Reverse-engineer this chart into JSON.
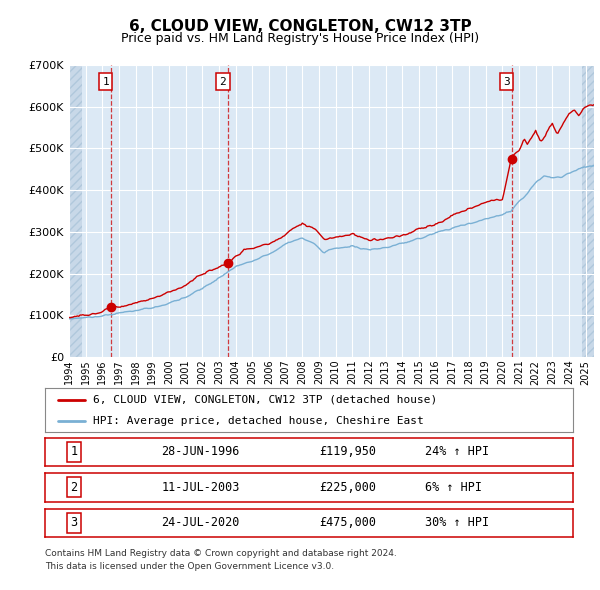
{
  "title": "6, CLOUD VIEW, CONGLETON, CW12 3TP",
  "subtitle": "Price paid vs. HM Land Registry's House Price Index (HPI)",
  "title_fontsize": 11,
  "subtitle_fontsize": 9,
  "background_color": "#ffffff",
  "plot_bg_color": "#dce9f5",
  "hatch_color": "#c8d8e8",
  "grid_color": "#ffffff",
  "hpi_line_color": "#7ab0d4",
  "price_line_color": "#cc0000",
  "marker_color": "#cc0000",
  "sale_years": [
    1996.5,
    2003.54,
    2020.56
  ],
  "sale_prices": [
    119950,
    225000,
    475000
  ],
  "sale_labels": [
    "1",
    "2",
    "3"
  ],
  "sale_label_pcts": [
    "24% ↑ HPI",
    "6% ↑ HPI",
    "30% ↑ HPI"
  ],
  "sale_date_strs": [
    "28-JUN-1996",
    "11-JUL-2003",
    "24-JUL-2020"
  ],
  "sale_price_strs": [
    "£119,950",
    "£225,000",
    "£475,000"
  ],
  "legend_line1": "6, CLOUD VIEW, CONGLETON, CW12 3TP (detached house)",
  "legend_line2": "HPI: Average price, detached house, Cheshire East",
  "footer1": "Contains HM Land Registry data © Crown copyright and database right 2024.",
  "footer2": "This data is licensed under the Open Government Licence v3.0.",
  "xmin": 1994.0,
  "xmax": 2025.5,
  "ymin": 0,
  "ymax": 700000,
  "yticks": [
    0,
    100000,
    200000,
    300000,
    400000,
    500000,
    600000,
    700000
  ],
  "ytick_labels": [
    "£0",
    "£100K",
    "£200K",
    "£300K",
    "£400K",
    "£500K",
    "£600K",
    "£700K"
  ]
}
